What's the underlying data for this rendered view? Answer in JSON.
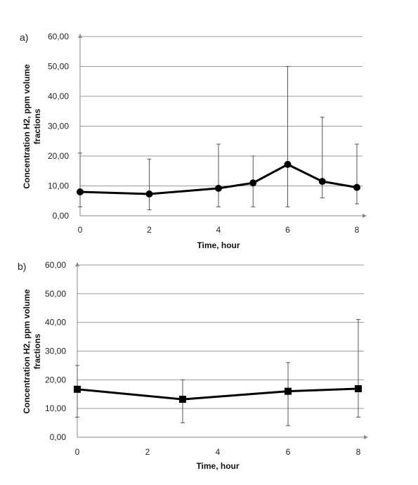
{
  "chart_data": [
    {
      "type": "line",
      "panel_label": "a)",
      "marker": "circle",
      "xlabel": "Time, hour",
      "ylabel_lines": [
        "Concentration H2, ppm volume",
        "fractions"
      ],
      "ylim": [
        0,
        60
      ],
      "xlim": [
        0,
        8
      ],
      "y_ticks": [
        0,
        10,
        20,
        30,
        40,
        50,
        60
      ],
      "y_tick_labels": [
        "0,00",
        "10,00",
        "20,00",
        "30,00",
        "40,00",
        "50,00",
        "60,00"
      ],
      "x_ticks": [
        0,
        2,
        4,
        6,
        8
      ],
      "x_tick_labels": [
        "0",
        "2",
        "4",
        "6",
        "8"
      ],
      "grid": "horizontal",
      "series": [
        {
          "x": [
            0,
            2,
            4,
            5,
            6,
            7,
            8
          ],
          "y": [
            8.0,
            7.3,
            9.2,
            11.0,
            17.2,
            11.5,
            9.5
          ],
          "err_low": [
            3,
            2,
            3,
            3,
            3,
            6,
            4
          ],
          "err_high": [
            21,
            19,
            24,
            20,
            50,
            33,
            24
          ]
        }
      ]
    },
    {
      "type": "line",
      "panel_label": "b)",
      "marker": "square",
      "xlabel": "Time, hour",
      "ylabel_lines": [
        "Concentration H2, ppm volume",
        "fractions"
      ],
      "ylim": [
        0,
        60
      ],
      "xlim": [
        0,
        8
      ],
      "y_ticks": [
        0,
        10,
        20,
        30,
        40,
        50,
        60
      ],
      "y_tick_labels": [
        "0,00",
        "10,00",
        "20,00",
        "30,00",
        "40,00",
        "50,00",
        "60,00"
      ],
      "x_ticks": [
        0,
        2,
        4,
        6,
        8
      ],
      "x_tick_labels": [
        "0",
        "2",
        "4",
        "6",
        "8"
      ],
      "grid": "horizontal",
      "series": [
        {
          "x": [
            0,
            3,
            6,
            8
          ],
          "y": [
            16.7,
            13.2,
            16.0,
            16.9
          ],
          "err_low": [
            7,
            5,
            4,
            7
          ],
          "err_high": [
            25,
            20,
            26,
            41
          ]
        }
      ]
    }
  ]
}
